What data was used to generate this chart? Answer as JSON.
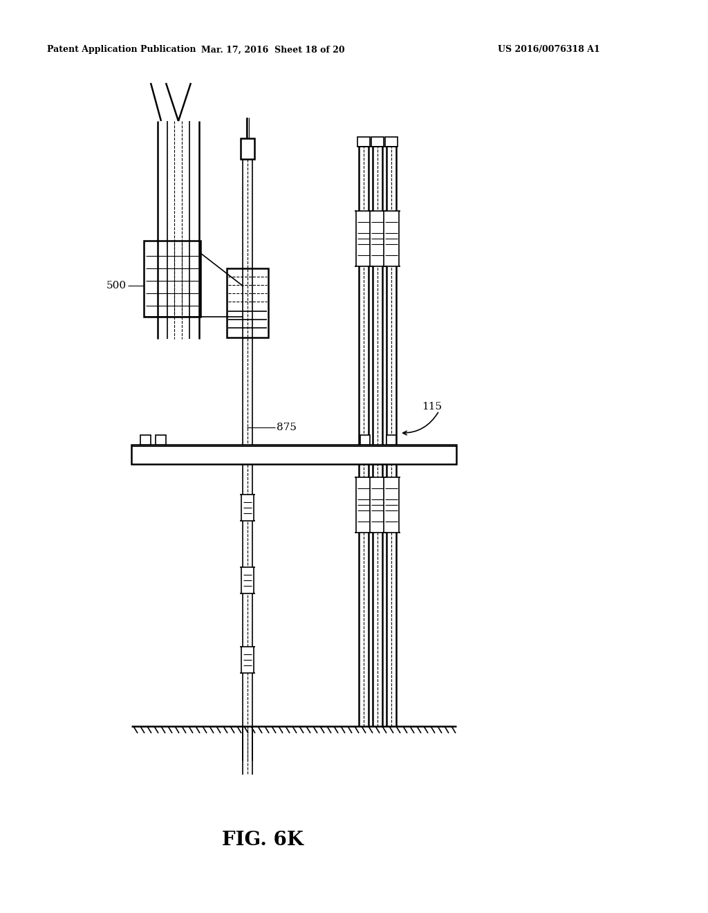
{
  "bg_color": "#ffffff",
  "header_left": "Patent Application Publication",
  "header_center": "Mar. 17, 2016  Sheet 18 of 20",
  "header_right": "US 2016/0076318 A1",
  "fig_label": "FIG. 6K",
  "label_500": "500",
  "label_875": "875",
  "label_115": "115",
  "line_color": "#000000",
  "dash_color": "#000000"
}
